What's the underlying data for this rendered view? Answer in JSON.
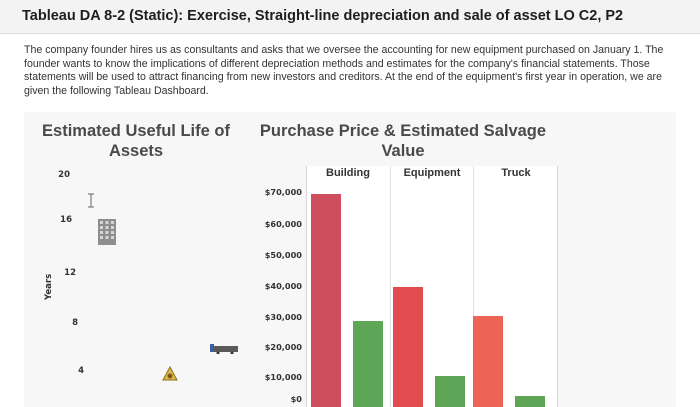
{
  "header": {
    "title": "Tableau DA 8-2 (Static): Exercise, Straight-line depreciation and sale of asset LO C2, P2"
  },
  "intro": "The company founder hires us as consultants and asks that we oversee the accounting for new equipment purchased on January 1. The founder wants to know the implications of different depreciation methods and estimates for the company's financial statements. Those statements will be used to attract financing from new investors and creditors. At the end of the equipment's first year in operation, we are given the following Tableau Dashboard.",
  "left_panel": {
    "title_line1": "Estimated Useful Life of",
    "title_line2": "Assets",
    "y_axis_label": "Years",
    "y_ticks": [
      "20",
      "16",
      "12",
      "8",
      "4"
    ],
    "icons": [
      "building-icon",
      "equipment-icon",
      "truck-icon"
    ]
  },
  "right_panel": {
    "title_line1": "Purchase Price & Estimated Salvage",
    "title_line2": "Value",
    "columns": [
      "Building",
      "Equipment",
      "Truck"
    ],
    "y_ticks": [
      "$70,000",
      "$60,000",
      "$50,000",
      "$40,000",
      "$30,000",
      "$20,000",
      "$10,000",
      "$0"
    ]
  },
  "chart_data": [
    {
      "type": "scatter",
      "title": "Estimated Useful Life of Assets",
      "ylabel": "Years",
      "y_ticks": [
        20,
        16,
        12,
        8,
        4
      ],
      "ylim": [
        0,
        21
      ],
      "points": [
        {
          "asset": "Building",
          "years": 17.5
        },
        {
          "asset": "Equipment",
          "years": 2
        },
        {
          "asset": "Truck",
          "years": 6
        }
      ]
    },
    {
      "type": "bar",
      "title": "Purchase Price & Estimated Salvage Value",
      "categories": [
        "Building",
        "Equipment",
        "Truck"
      ],
      "ylim": [
        0,
        76000
      ],
      "series": [
        {
          "values": [
            69000,
            39000,
            29500
          ],
          "color": "#cf4e5d"
        },
        {
          "values": [
            28000,
            10000,
            3500
          ],
          "color": "#5fa558"
        }
      ],
      "colors": [
        "#cf4e5d",
        "#e24b50",
        "#ed6456"
      ]
    }
  ]
}
